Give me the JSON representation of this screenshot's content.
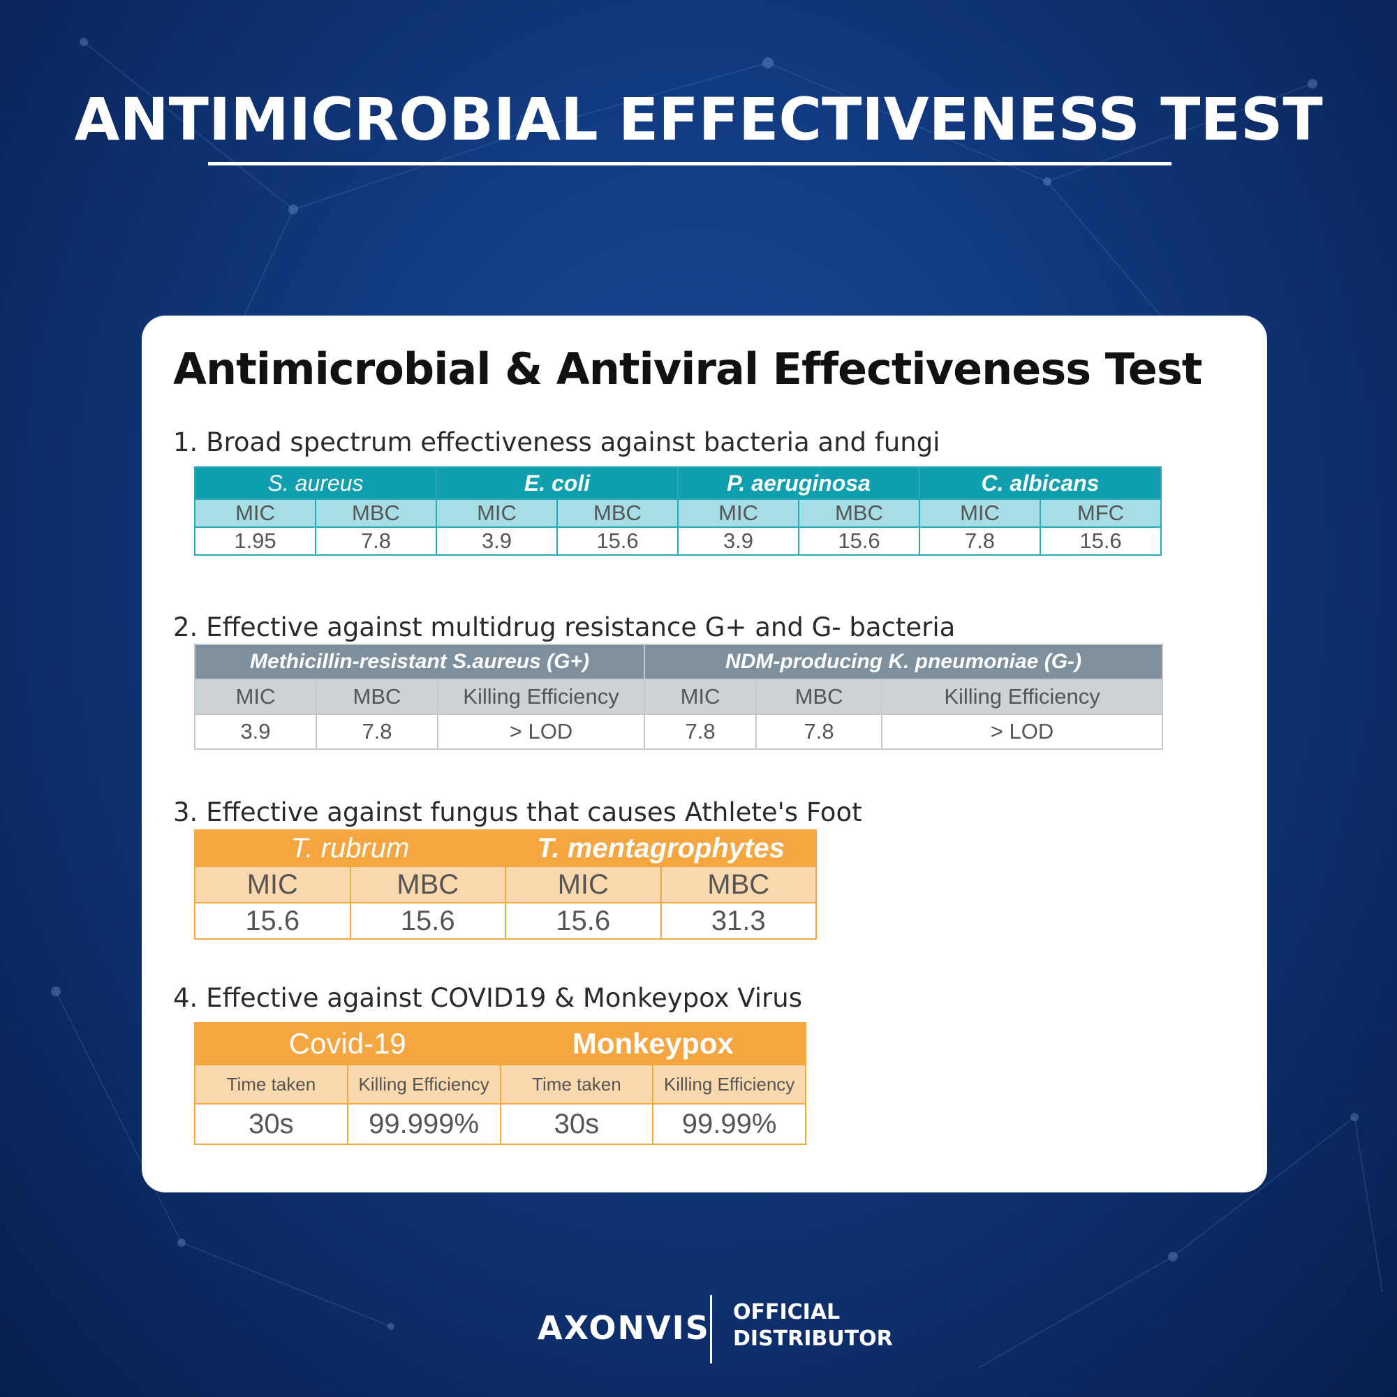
{
  "page_title": "ANTIMICROBIAL EFFECTIVENESS TEST",
  "card_title": "Antimicrobial & Antiviral Effectiveness Test",
  "section1": {
    "title": "1. Broad spectrum effectiveness against bacteria and fungi",
    "groups": [
      "S. aureus",
      "E. coli",
      "P. aeruginosa",
      "C. albicans"
    ],
    "subheaders": [
      "MIC",
      "MBC",
      "MIC",
      "MBC",
      "MIC",
      "MBC",
      "MIC",
      "MFC"
    ],
    "values": [
      "1.95",
      "7.8",
      "3.9",
      "15.6",
      "3.9",
      "15.6",
      "7.8",
      "15.6"
    ]
  },
  "section2": {
    "title": "2. Effective against multidrug resistance G+ and G- bacteria",
    "groups": [
      "Methicillin-resistant  S.aureus (G+)",
      "NDM-producing K. pneumoniae (G-)"
    ],
    "subheaders": [
      "MIC",
      "MBC",
      "Killing  Efficiency",
      "MIC",
      "MBC",
      "Killing  Efficiency"
    ],
    "values": [
      "3.9",
      "7.8",
      "> LOD",
      "7.8",
      "7.8",
      "> LOD"
    ]
  },
  "section3": {
    "title": "3. Effective against fungus that causes Athlete's Foot",
    "groups": [
      "T. rubrum",
      "T. mentagrophytes"
    ],
    "subheaders": [
      "MIC",
      "MBC",
      "MIC",
      "MBC"
    ],
    "values": [
      "15.6",
      "15.6",
      "15.6",
      "31.3"
    ]
  },
  "section4": {
    "title": "4. Effective against COVID19 & Monkeypox Virus",
    "groups": [
      "Covid-19",
      "Monkeypox"
    ],
    "subheaders": [
      "Time taken",
      "Killing  Efficiency",
      "Time taken",
      "Killing  Efficiency"
    ],
    "values": [
      "30s",
      "99.999%",
      "30s",
      "99.99%"
    ]
  },
  "footer": {
    "logo": "AXONVIS",
    "line1": "OFFICIAL",
    "line2": "DISTRIBUTOR"
  },
  "colors": {
    "background": "#123a80",
    "teal": "#0f9fae",
    "slate": "#7e909d",
    "orange": "#f6a640"
  }
}
